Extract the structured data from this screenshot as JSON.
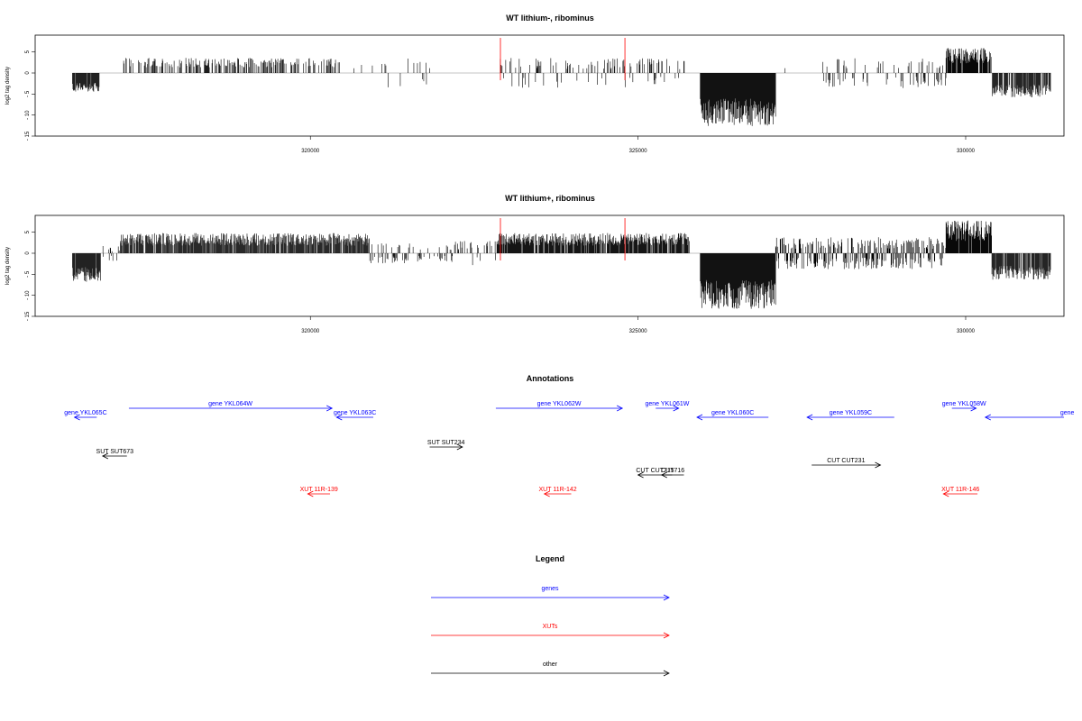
{
  "chart_data": [
    {
      "type": "bar",
      "title": "WT lithium-, ribominus",
      "ylabel": "log2 tag density",
      "xlim": [
        315800,
        331500
      ],
      "ylim": [
        -15,
        9
      ],
      "x_ticks": [
        320000,
        325000,
        330000
      ],
      "y_ticks": [
        5,
        0,
        -5,
        -10,
        -15
      ],
      "highlight_x": [
        322900,
        324800
      ],
      "highlight_color": "#ff0000",
      "segments": [
        {
          "start": 316370,
          "end": 316780,
          "kind": "neg",
          "level": -4.0,
          "density": 0.9
        },
        {
          "start": 316780,
          "end": 317150,
          "kind": "none"
        },
        {
          "start": 317150,
          "end": 320450,
          "kind": "pos",
          "level": 3.0,
          "density": 0.35
        },
        {
          "start": 320450,
          "end": 321900,
          "kind": "sparse",
          "level": 3.0,
          "density": 0.08
        },
        {
          "start": 321900,
          "end": 322850,
          "kind": "none"
        },
        {
          "start": 322850,
          "end": 325800,
          "kind": "sparse",
          "level": 3.0,
          "density": 0.2
        },
        {
          "start": 325950,
          "end": 327100,
          "kind": "neg",
          "level": -11.0,
          "density": 1.0
        },
        {
          "start": 327100,
          "end": 327800,
          "kind": "sparse",
          "level": 2.0,
          "density": 0.04
        },
        {
          "start": 327800,
          "end": 329700,
          "kind": "sparse",
          "level": -3.0,
          "density": 0.35
        },
        {
          "start": 329700,
          "end": 330400,
          "kind": "pos",
          "level": 5.0,
          "density": 0.9
        },
        {
          "start": 330400,
          "end": 331300,
          "kind": "neg",
          "level": -5.0,
          "density": 0.85
        }
      ]
    },
    {
      "type": "bar",
      "title": "WT lithium+, ribominus",
      "ylabel": "log2 tag density",
      "xlim": [
        315800,
        331500
      ],
      "ylim": [
        -15,
        9
      ],
      "x_ticks": [
        320000,
        325000,
        330000
      ],
      "y_ticks": [
        5,
        0,
        -5,
        -10,
        -15
      ],
      "highlight_x": [
        322900,
        324800
      ],
      "highlight_color": "#ff0000",
      "segments": [
        {
          "start": 316370,
          "end": 316800,
          "kind": "neg",
          "level": -6.0,
          "density": 0.95
        },
        {
          "start": 316800,
          "end": 317100,
          "kind": "sparse",
          "level": 1.5,
          "density": 0.3
        },
        {
          "start": 317100,
          "end": 320900,
          "kind": "pos",
          "level": 4.0,
          "density": 0.85
        },
        {
          "start": 320900,
          "end": 322200,
          "kind": "sparse",
          "level": -2.0,
          "density": 0.3
        },
        {
          "start": 322200,
          "end": 322850,
          "kind": "sparse",
          "level": 2.5,
          "density": 0.2
        },
        {
          "start": 322850,
          "end": 325800,
          "kind": "pos",
          "level": 4.0,
          "density": 0.85
        },
        {
          "start": 325950,
          "end": 327100,
          "kind": "neg",
          "level": -11.5,
          "density": 1.0
        },
        {
          "start": 327100,
          "end": 329700,
          "kind": "mix",
          "level": 3.5,
          "density": 0.7
        },
        {
          "start": 329700,
          "end": 330400,
          "kind": "pos",
          "level": 6.5,
          "density": 0.95
        },
        {
          "start": 330400,
          "end": 331300,
          "kind": "neg",
          "level": -5.5,
          "density": 0.85
        }
      ]
    }
  ],
  "annotations": {
    "title": "Annotations",
    "features": [
      {
        "label": "gene YKL065C",
        "start": 316400,
        "end": 316740,
        "strand": "-",
        "color": "#0000ff",
        "row": 1
      },
      {
        "label": "gene YKL064W",
        "start": 317230,
        "end": 320330,
        "strand": "+",
        "color": "#0000ff",
        "row": 0
      },
      {
        "label": "gene YKL063C",
        "start": 320400,
        "end": 320960,
        "strand": "-",
        "color": "#0000ff",
        "row": 1
      },
      {
        "label": "gene YKL062W",
        "start": 322830,
        "end": 324760,
        "strand": "+",
        "color": "#0000ff",
        "row": 0
      },
      {
        "label": "gene YKL061W",
        "start": 325270,
        "end": 325620,
        "strand": "+",
        "color": "#0000ff",
        "row": 0
      },
      {
        "label": "gene YKL060C",
        "start": 325900,
        "end": 326990,
        "strand": "-",
        "color": "#0000ff",
        "row": 1
      },
      {
        "label": "gene YKL059C",
        "start": 327580,
        "end": 328910,
        "strand": "-",
        "color": "#0000ff",
        "row": 1
      },
      {
        "label": "gene YKL058W",
        "start": 329790,
        "end": 330160,
        "strand": "+",
        "color": "#0000ff",
        "row": 0
      },
      {
        "label": "gene",
        "start": 330300,
        "end": 331500,
        "strand": "-",
        "color": "#0000ff",
        "row": 1,
        "label_x": 331550
      },
      {
        "label": "SUT SUT673",
        "start": 316830,
        "end": 317200,
        "strand": "-",
        "color": "#000000",
        "row": 3
      },
      {
        "label": "SUT SUT234",
        "start": 321820,
        "end": 322320,
        "strand": "+",
        "color": "#000000",
        "row": 2
      },
      {
        "label": "CUT CUT715",
        "start": 325000,
        "end": 325520,
        "strand": "-",
        "color": "#000000",
        "row": 4
      },
      {
        "label": "CUT716",
        "start": 325360,
        "end": 325700,
        "strand": "-",
        "color": "#000000",
        "row": 4
      },
      {
        "label": "CUT CUT231",
        "start": 327650,
        "end": 328700,
        "strand": "+",
        "color": "#000000",
        "row": 5
      },
      {
        "label": "XUT 11R-139",
        "start": 319960,
        "end": 320300,
        "strand": "-",
        "color": "#ff0000",
        "row": 6
      },
      {
        "label": "XUT 11R-142",
        "start": 323570,
        "end": 323980,
        "strand": "-",
        "color": "#ff0000",
        "row": 6
      },
      {
        "label": "XUT 11R-146",
        "start": 329660,
        "end": 330180,
        "strand": "-",
        "color": "#ff0000",
        "row": 6
      }
    ]
  },
  "legend": {
    "title": "Legend",
    "items": [
      {
        "label": "genes",
        "color": "#0000ff"
      },
      {
        "label": "XUTs",
        "color": "#ff0000"
      },
      {
        "label": "other",
        "color": "#000000"
      }
    ]
  }
}
